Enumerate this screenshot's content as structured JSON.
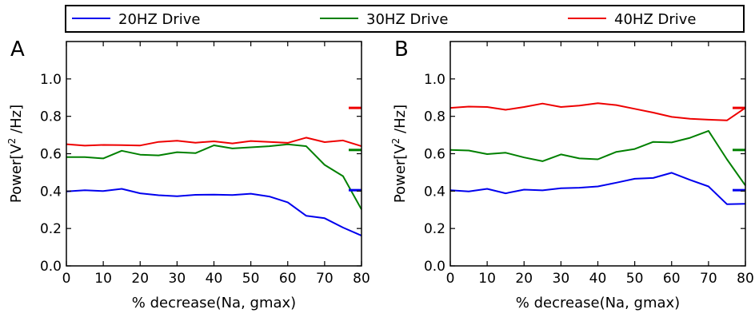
{
  "legend": {
    "entries": [
      "20HZ Drive",
      "30HZ Drive",
      "40HZ Drive"
    ]
  },
  "chart_data": [
    {
      "type": "line",
      "panel": "A",
      "xlabel": "% decrease(Na, gmax)",
      "ylabel_prefix": "Power[V",
      "ylabel_sup": "2",
      "ylabel_suffix": " /Hz]",
      "xlim": [
        0,
        80
      ],
      "ylim": [
        0,
        1.2
      ],
      "xticks": [
        0,
        10,
        20,
        30,
        40,
        50,
        60,
        70,
        80
      ],
      "yticks": [
        0.0,
        0.2,
        0.4,
        0.6,
        0.8,
        1.0
      ],
      "x": [
        0,
        5,
        10,
        15,
        20,
        25,
        30,
        35,
        40,
        45,
        50,
        55,
        60,
        65,
        70,
        75,
        80
      ],
      "series": [
        {
          "name": "20HZ Drive",
          "color": "#0000ee",
          "values": [
            0.398,
            0.405,
            0.4,
            0.412,
            0.388,
            0.378,
            0.373,
            0.38,
            0.381,
            0.379,
            0.386,
            0.371,
            0.34,
            0.268,
            0.255,
            0.205,
            0.162
          ],
          "reference": 0.405
        },
        {
          "name": "30HZ Drive",
          "color": "#008000",
          "values": [
            0.582,
            0.582,
            0.575,
            0.616,
            0.595,
            0.591,
            0.608,
            0.603,
            0.645,
            0.628,
            0.634,
            0.64,
            0.65,
            0.64,
            0.54,
            0.48,
            0.302
          ],
          "reference": 0.62
        },
        {
          "name": "40HZ Drive",
          "color": "#ee0000",
          "values": [
            0.651,
            0.643,
            0.647,
            0.646,
            0.644,
            0.663,
            0.669,
            0.659,
            0.666,
            0.655,
            0.668,
            0.663,
            0.658,
            0.686,
            0.662,
            0.671,
            0.64
          ],
          "reference": 0.845
        }
      ]
    },
    {
      "type": "line",
      "panel": "B",
      "xlabel": "% decrease(Na, gmax)",
      "ylabel_prefix": "Power[V",
      "ylabel_sup": "2",
      "ylabel_suffix": " /Hz]",
      "xlim": [
        0,
        80
      ],
      "ylim": [
        0,
        1.2
      ],
      "xticks": [
        0,
        10,
        20,
        30,
        40,
        50,
        60,
        70,
        80
      ],
      "yticks": [
        0.0,
        0.2,
        0.4,
        0.6,
        0.8,
        1.0
      ],
      "x": [
        0,
        5,
        10,
        15,
        20,
        25,
        30,
        35,
        40,
        45,
        50,
        55,
        60,
        65,
        70,
        75,
        80
      ],
      "series": [
        {
          "name": "20HZ Drive",
          "color": "#0000ee",
          "values": [
            0.405,
            0.398,
            0.412,
            0.388,
            0.408,
            0.404,
            0.415,
            0.418,
            0.425,
            0.445,
            0.466,
            0.47,
            0.498,
            0.46,
            0.425,
            0.33,
            0.332
          ],
          "reference": 0.405
        },
        {
          "name": "30HZ Drive",
          "color": "#008000",
          "values": [
            0.62,
            0.617,
            0.598,
            0.605,
            0.58,
            0.56,
            0.596,
            0.575,
            0.57,
            0.61,
            0.625,
            0.663,
            0.66,
            0.685,
            0.722,
            0.57,
            0.43
          ],
          "reference": 0.62
        },
        {
          "name": "40HZ Drive",
          "color": "#ee0000",
          "values": [
            0.845,
            0.852,
            0.85,
            0.835,
            0.85,
            0.868,
            0.85,
            0.857,
            0.87,
            0.86,
            0.84,
            0.82,
            0.797,
            0.787,
            0.782,
            0.778,
            0.845
          ],
          "reference": 0.845
        }
      ]
    }
  ]
}
